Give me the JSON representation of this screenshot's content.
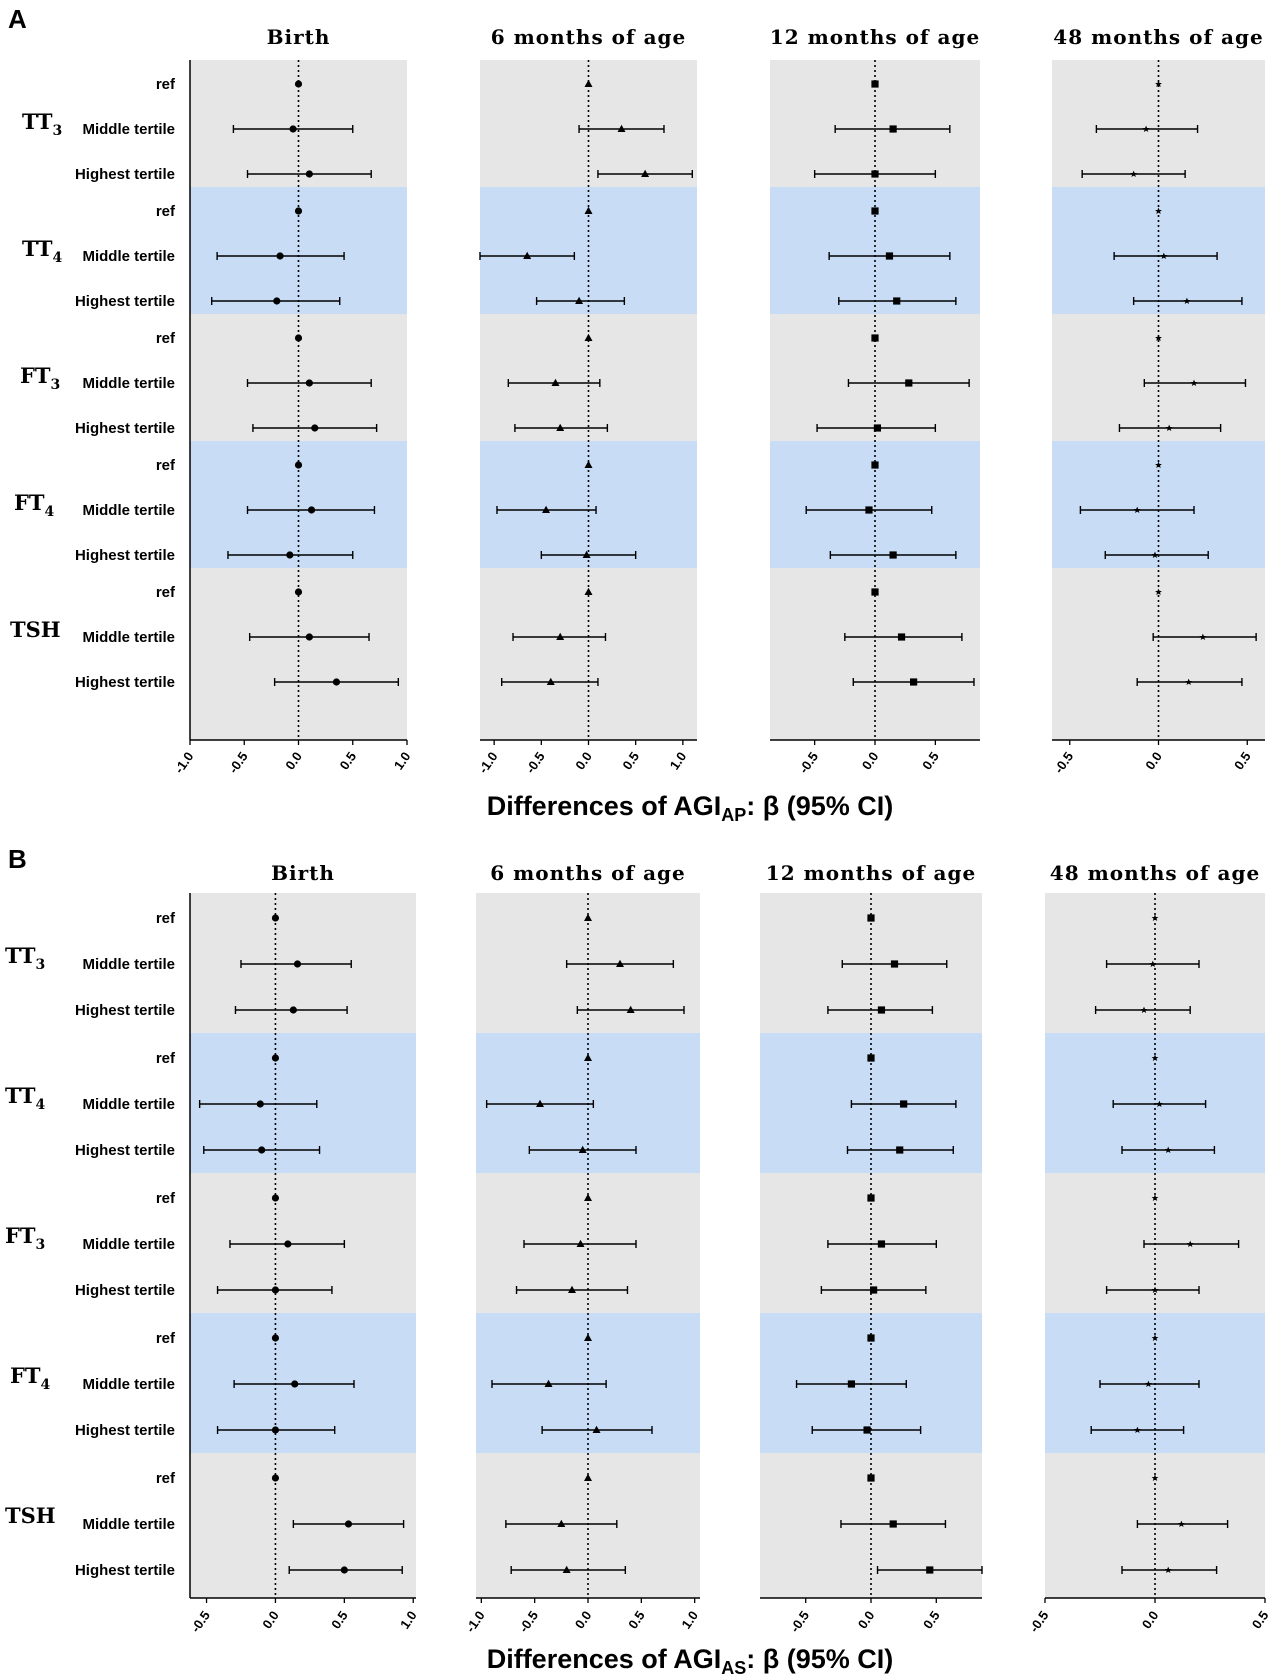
{
  "figure": {
    "panel_labels": [
      "A",
      "B"
    ],
    "row_labels": [
      "ref",
      "Middle tertile",
      "Highest tertile"
    ],
    "band_colors": [
      "#e6e6e6",
      "#c8dcf5"
    ]
  },
  "chart_data": [
    {
      "panel": "A",
      "type": "forest",
      "xlabel_main": "Differences of AGI",
      "xlabel_sub": "AP",
      "xlabel_tail": ": β (95% CI)",
      "groups": [
        {
          "label": "TT",
          "sub": "3"
        },
        {
          "label": "TT",
          "sub": "4"
        },
        {
          "label": "FT",
          "sub": "3"
        },
        {
          "label": "FT",
          "sub": "4"
        },
        {
          "label": "TSH",
          "sub": ""
        }
      ],
      "columns": [
        {
          "title": "Birth",
          "marker": "circle",
          "xlim": [
            -1.0,
            1.0
          ],
          "ticks": [
            -1.0,
            -0.5,
            0.0,
            0.5,
            1.0
          ],
          "tick_labels": [
            "-1.0",
            "-0.5",
            "0.0",
            "0.5",
            "1.0"
          ],
          "rows": [
            [
              0,
              0,
              0
            ],
            [
              -0.05,
              -0.6,
              0.5
            ],
            [
              0.1,
              -0.47,
              0.67
            ],
            [
              0,
              0,
              0
            ],
            [
              -0.17,
              -0.75,
              0.42
            ],
            [
              -0.2,
              -0.8,
              0.38
            ],
            [
              0,
              0,
              0
            ],
            [
              0.1,
              -0.47,
              0.67
            ],
            [
              0.15,
              -0.42,
              0.72
            ],
            [
              0,
              0,
              0
            ],
            [
              0.12,
              -0.47,
              0.7
            ],
            [
              -0.08,
              -0.65,
              0.5
            ],
            [
              0,
              0,
              0
            ],
            [
              0.1,
              -0.45,
              0.65
            ],
            [
              0.35,
              -0.22,
              0.92
            ]
          ]
        },
        {
          "title": "6 months of age",
          "marker": "triangle",
          "xlim": [
            -1.15,
            1.15
          ],
          "ticks": [
            -1.0,
            -0.5,
            0.0,
            0.5,
            1.0
          ],
          "tick_labels": [
            "-1.0",
            "-0.5",
            "0.0",
            "0.5",
            "1.0"
          ],
          "rows": [
            [
              0,
              0,
              0
            ],
            [
              0.35,
              -0.1,
              0.8
            ],
            [
              0.6,
              0.1,
              1.1
            ],
            [
              0,
              0,
              0
            ],
            [
              -0.65,
              -1.15,
              -0.15
            ],
            [
              -0.1,
              -0.55,
              0.38
            ],
            [
              0,
              0,
              0
            ],
            [
              -0.35,
              -0.85,
              0.12
            ],
            [
              -0.3,
              -0.78,
              0.2
            ],
            [
              0,
              0,
              0
            ],
            [
              -0.45,
              -0.97,
              0.08
            ],
            [
              -0.02,
              -0.5,
              0.5
            ],
            [
              0,
              0,
              0
            ],
            [
              -0.3,
              -0.8,
              0.18
            ],
            [
              -0.4,
              -0.92,
              0.1
            ]
          ]
        },
        {
          "title": "12 months of age",
          "marker": "square",
          "xlim": [
            -0.87,
            0.87
          ],
          "ticks": [
            -0.5,
            0.0,
            0.5
          ],
          "tick_labels": [
            "-0.5",
            "0.0",
            "0.5"
          ],
          "rows": [
            [
              0,
              0,
              0
            ],
            [
              0.15,
              -0.33,
              0.62
            ],
            [
              0.0,
              -0.5,
              0.5
            ],
            [
              0,
              0,
              0
            ],
            [
              0.12,
              -0.38,
              0.62
            ],
            [
              0.18,
              -0.3,
              0.67
            ],
            [
              0,
              0,
              0
            ],
            [
              0.28,
              -0.22,
              0.78
            ],
            [
              0.02,
              -0.48,
              0.5
            ],
            [
              0,
              0,
              0
            ],
            [
              -0.05,
              -0.57,
              0.47
            ],
            [
              0.15,
              -0.37,
              0.67
            ],
            [
              0,
              0,
              0
            ],
            [
              0.22,
              -0.25,
              0.72
            ],
            [
              0.32,
              -0.18,
              0.82
            ]
          ]
        },
        {
          "title": "48 months of age",
          "marker": "star",
          "xlim": [
            -0.6,
            0.6
          ],
          "ticks": [
            -0.5,
            0.0,
            0.5
          ],
          "tick_labels": [
            "-0.5",
            "0.0",
            "0.5"
          ],
          "rows": [
            [
              0,
              0,
              0
            ],
            [
              -0.07,
              -0.35,
              0.22
            ],
            [
              -0.14,
              -0.43,
              0.15
            ],
            [
              0,
              0,
              0
            ],
            [
              0.03,
              -0.25,
              0.33
            ],
            [
              0.16,
              -0.14,
              0.47
            ],
            [
              0,
              0,
              0
            ],
            [
              0.2,
              -0.08,
              0.49
            ],
            [
              0.06,
              -0.22,
              0.35
            ],
            [
              0,
              0,
              0
            ],
            [
              -0.12,
              -0.44,
              0.2
            ],
            [
              -0.02,
              -0.3,
              0.28
            ],
            [
              0,
              0,
              0
            ],
            [
              0.25,
              -0.03,
              0.55
            ],
            [
              0.17,
              -0.12,
              0.47
            ]
          ]
        }
      ]
    },
    {
      "panel": "B",
      "type": "forest",
      "xlabel_main": "Differences of AGI",
      "xlabel_sub": "AS",
      "xlabel_tail": ": β (95% CI)",
      "groups": [
        {
          "label": "TT",
          "sub": "3"
        },
        {
          "label": "TT",
          "sub": "4"
        },
        {
          "label": "FT",
          "sub": "3"
        },
        {
          "label": "FT",
          "sub": "4"
        },
        {
          "label": "TSH",
          "sub": ""
        }
      ],
      "columns": [
        {
          "title": "Birth",
          "marker": "circle",
          "xlim": [
            -0.62,
            1.02
          ],
          "ticks": [
            -0.5,
            0.0,
            0.5,
            1.0
          ],
          "tick_labels": [
            "-0.5",
            "0.0",
            "0.5",
            "1.0"
          ],
          "rows": [
            [
              0,
              0,
              0
            ],
            [
              0.16,
              -0.25,
              0.55
            ],
            [
              0.13,
              -0.29,
              0.52
            ],
            [
              0,
              0,
              0
            ],
            [
              -0.11,
              -0.55,
              0.3
            ],
            [
              -0.1,
              -0.52,
              0.32
            ],
            [
              0,
              0,
              0
            ],
            [
              0.09,
              -0.33,
              0.5
            ],
            [
              0.0,
              -0.42,
              0.41
            ],
            [
              0,
              0,
              0
            ],
            [
              0.14,
              -0.3,
              0.57
            ],
            [
              0.0,
              -0.42,
              0.43
            ],
            [
              0,
              0,
              0
            ],
            [
              0.53,
              0.13,
              0.93
            ],
            [
              0.5,
              0.1,
              0.92
            ]
          ]
        },
        {
          "title": "6 months of age",
          "marker": "triangle",
          "xlim": [
            -1.05,
            1.05
          ],
          "ticks": [
            -1.0,
            -0.5,
            0.0,
            0.5,
            1.0
          ],
          "tick_labels": [
            "-1.0",
            "-0.5",
            "0.0",
            "0.5",
            "1.0"
          ],
          "rows": [
            [
              0,
              0,
              0
            ],
            [
              0.3,
              -0.2,
              0.8
            ],
            [
              0.4,
              -0.1,
              0.9
            ],
            [
              0,
              0,
              0
            ],
            [
              -0.45,
              -0.95,
              0.05
            ],
            [
              -0.05,
              -0.55,
              0.45
            ],
            [
              0,
              0,
              0
            ],
            [
              -0.07,
              -0.6,
              0.45
            ],
            [
              -0.15,
              -0.67,
              0.37
            ],
            [
              0,
              0,
              0
            ],
            [
              -0.37,
              -0.9,
              0.17
            ],
            [
              0.08,
              -0.43,
              0.6
            ],
            [
              0,
              0,
              0
            ],
            [
              -0.25,
              -0.77,
              0.27
            ],
            [
              -0.2,
              -0.72,
              0.35
            ]
          ]
        },
        {
          "title": "12 months of age",
          "marker": "square",
          "xlim": [
            -0.85,
            0.85
          ],
          "ticks": [
            -0.5,
            0.0,
            0.5
          ],
          "tick_labels": [
            "-0.5",
            "0.0",
            "0.5"
          ],
          "rows": [
            [
              0,
              0,
              0
            ],
            [
              0.18,
              -0.22,
              0.58
            ],
            [
              0.08,
              -0.33,
              0.47
            ],
            [
              0,
              0,
              0
            ],
            [
              0.25,
              -0.15,
              0.65
            ],
            [
              0.22,
              -0.18,
              0.63
            ],
            [
              0,
              0,
              0
            ],
            [
              0.08,
              -0.33,
              0.5
            ],
            [
              0.02,
              -0.38,
              0.42
            ],
            [
              0,
              0,
              0
            ],
            [
              -0.15,
              -0.57,
              0.27
            ],
            [
              -0.03,
              -0.45,
              0.38
            ],
            [
              0,
              0,
              0
            ],
            [
              0.17,
              -0.23,
              0.57
            ],
            [
              0.45,
              0.05,
              0.85
            ]
          ]
        },
        {
          "title": "48 months of age",
          "marker": "star",
          "xlim": [
            -0.5,
            0.5
          ],
          "ticks": [
            -0.5,
            0.0,
            0.5
          ],
          "tick_labels": [
            "-0.5",
            "0.0",
            "0.5"
          ],
          "rows": [
            [
              0,
              0,
              0
            ],
            [
              -0.01,
              -0.22,
              0.2
            ],
            [
              -0.05,
              -0.27,
              0.16
            ],
            [
              0,
              0,
              0
            ],
            [
              0.02,
              -0.19,
              0.23
            ],
            [
              0.06,
              -0.15,
              0.27
            ],
            [
              0,
              0,
              0
            ],
            [
              0.16,
              -0.05,
              0.38
            ],
            [
              0.0,
              -0.22,
              0.2
            ],
            [
              0,
              0,
              0
            ],
            [
              -0.03,
              -0.25,
              0.2
            ],
            [
              -0.08,
              -0.29,
              0.13
            ],
            [
              0,
              0,
              0
            ],
            [
              0.12,
              -0.08,
              0.33
            ],
            [
              0.06,
              -0.15,
              0.28
            ]
          ]
        }
      ]
    }
  ]
}
